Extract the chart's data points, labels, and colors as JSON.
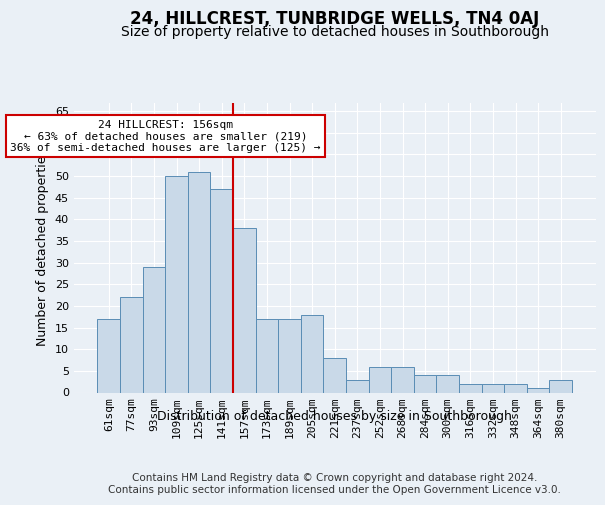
{
  "title": "24, HILLCREST, TUNBRIDGE WELLS, TN4 0AJ",
  "subtitle": "Size of property relative to detached houses in Southborough",
  "xlabel": "Distribution of detached houses by size in Southborough",
  "ylabel": "Number of detached properties",
  "footer_line1": "Contains HM Land Registry data © Crown copyright and database right 2024.",
  "footer_line2": "Contains public sector information licensed under the Open Government Licence v3.0.",
  "categories": [
    "61sqm",
    "77sqm",
    "93sqm",
    "109sqm",
    "125sqm",
    "141sqm",
    "157sqm",
    "173sqm",
    "189sqm",
    "205sqm",
    "221sqm",
    "237sqm",
    "252sqm",
    "268sqm",
    "284sqm",
    "300sqm",
    "316sqm",
    "332sqm",
    "348sqm",
    "364sqm",
    "380sqm"
  ],
  "values": [
    17,
    22,
    29,
    50,
    51,
    47,
    38,
    17,
    17,
    18,
    8,
    3,
    6,
    6,
    4,
    4,
    2,
    2,
    2,
    1,
    3
  ],
  "bar_color": "#c9d9e8",
  "bar_edge_color": "#5a8db5",
  "marker_bar_index": 6,
  "marker_color": "#cc0000",
  "annotation_line1": "24 HILLCREST: 156sqm",
  "annotation_line2": "← 63% of detached houses are smaller (219)",
  "annotation_line3": "36% of semi-detached houses are larger (125) →",
  "annotation_box_color": "#ffffff",
  "annotation_box_edge": "#cc0000",
  "ylim": [
    0,
    67
  ],
  "yticks": [
    0,
    5,
    10,
    15,
    20,
    25,
    30,
    35,
    40,
    45,
    50,
    55,
    60,
    65
  ],
  "background_color": "#eaf0f6",
  "grid_color": "#ffffff",
  "title_fontsize": 12,
  "subtitle_fontsize": 10,
  "axis_label_fontsize": 9,
  "tick_fontsize": 8,
  "footer_fontsize": 7.5
}
